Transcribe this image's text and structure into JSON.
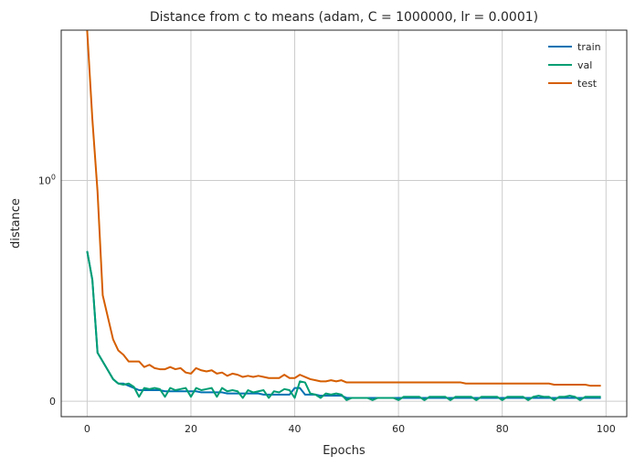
{
  "chart_data": {
    "type": "line",
    "title": "Distance from c to means (adam, C = 1000000, lr = 0.0001)",
    "xlabel": "Epochs",
    "ylabel": "distance",
    "yscale": "symlog",
    "xlim": [
      -5,
      104
    ],
    "grid": true,
    "legend_position": "top-right",
    "x_ticks": [
      0,
      20,
      40,
      60,
      80,
      100
    ],
    "x_tick_labels": [
      "0",
      "20",
      "40",
      "60",
      "80",
      "100"
    ],
    "y_ticks": [
      0,
      1
    ],
    "y_tick_labels": [
      "0",
      "10^0"
    ],
    "x": [
      0,
      1,
      2,
      3,
      4,
      5,
      6,
      7,
      8,
      9,
      10,
      11,
      12,
      13,
      14,
      15,
      16,
      17,
      18,
      19,
      20,
      21,
      22,
      23,
      24,
      25,
      26,
      27,
      28,
      29,
      30,
      31,
      32,
      33,
      34,
      35,
      36,
      37,
      38,
      39,
      40,
      41,
      42,
      43,
      44,
      45,
      46,
      47,
      48,
      49,
      50,
      51,
      52,
      53,
      54,
      55,
      56,
      57,
      58,
      59,
      60,
      61,
      62,
      63,
      64,
      65,
      66,
      67,
      68,
      69,
      70,
      71,
      72,
      73,
      74,
      75,
      76,
      77,
      78,
      79,
      80,
      81,
      82,
      83,
      84,
      85,
      86,
      87,
      88,
      89,
      90,
      91,
      92,
      93,
      94,
      95,
      96,
      97,
      98,
      99
    ],
    "series": [
      {
        "name": "train",
        "color": "#0072b2",
        "values": [
          0.68,
          0.55,
          0.22,
          0.18,
          0.14,
          0.1,
          0.08,
          0.08,
          0.07,
          0.06,
          0.05,
          0.05,
          0.05,
          0.05,
          0.05,
          0.045,
          0.045,
          0.045,
          0.045,
          0.045,
          0.045,
          0.045,
          0.04,
          0.04,
          0.04,
          0.04,
          0.04,
          0.035,
          0.035,
          0.035,
          0.035,
          0.035,
          0.035,
          0.035,
          0.03,
          0.03,
          0.03,
          0.03,
          0.03,
          0.03,
          0.06,
          0.06,
          0.03,
          0.03,
          0.03,
          0.025,
          0.025,
          0.025,
          0.025,
          0.025,
          0.015,
          0.015,
          0.015,
          0.015,
          0.015,
          0.015,
          0.015,
          0.015,
          0.015,
          0.015,
          0.015,
          0.015,
          0.015,
          0.015,
          0.015,
          0.015,
          0.015,
          0.015,
          0.015,
          0.015,
          0.015,
          0.015,
          0.015,
          0.015,
          0.015,
          0.015,
          0.015,
          0.015,
          0.015,
          0.015,
          0.015,
          0.015,
          0.015,
          0.015,
          0.015,
          0.015,
          0.015,
          0.015,
          0.015,
          0.015,
          0.015,
          0.015,
          0.015,
          0.015,
          0.015,
          0.015,
          0.015,
          0.015,
          0.015,
          0.015
        ]
      },
      {
        "name": "val",
        "color": "#009e73",
        "values": [
          0.68,
          0.55,
          0.22,
          0.18,
          0.14,
          0.1,
          0.08,
          0.075,
          0.08,
          0.065,
          0.02,
          0.06,
          0.055,
          0.06,
          0.055,
          0.02,
          0.06,
          0.05,
          0.055,
          0.06,
          0.02,
          0.06,
          0.05,
          0.055,
          0.06,
          0.02,
          0.06,
          0.045,
          0.05,
          0.045,
          0.015,
          0.05,
          0.04,
          0.045,
          0.05,
          0.015,
          0.045,
          0.04,
          0.055,
          0.05,
          0.015,
          0.09,
          0.085,
          0.035,
          0.03,
          0.015,
          0.035,
          0.03,
          0.035,
          0.03,
          0.005,
          0.015,
          0.015,
          0.015,
          0.015,
          0.005,
          0.015,
          0.015,
          0.015,
          0.015,
          0.005,
          0.02,
          0.02,
          0.02,
          0.02,
          0.005,
          0.02,
          0.02,
          0.02,
          0.02,
          0.005,
          0.02,
          0.02,
          0.02,
          0.02,
          0.005,
          0.02,
          0.02,
          0.02,
          0.02,
          0.005,
          0.02,
          0.02,
          0.02,
          0.02,
          0.005,
          0.02,
          0.025,
          0.02,
          0.02,
          0.005,
          0.02,
          0.02,
          0.025,
          0.02,
          0.005,
          0.02,
          0.02,
          0.02,
          0.02
        ]
      },
      {
        "name": "test",
        "color": "#d55e00",
        "values": [
          4.8,
          1.9,
          0.95,
          0.48,
          0.38,
          0.28,
          0.23,
          0.21,
          0.18,
          0.18,
          0.18,
          0.155,
          0.165,
          0.15,
          0.145,
          0.145,
          0.155,
          0.145,
          0.15,
          0.13,
          0.125,
          0.15,
          0.14,
          0.135,
          0.14,
          0.125,
          0.13,
          0.115,
          0.125,
          0.12,
          0.11,
          0.115,
          0.11,
          0.115,
          0.11,
          0.105,
          0.105,
          0.105,
          0.12,
          0.105,
          0.105,
          0.12,
          0.11,
          0.1,
          0.095,
          0.09,
          0.09,
          0.095,
          0.09,
          0.095,
          0.085,
          0.085,
          0.085,
          0.085,
          0.085,
          0.085,
          0.085,
          0.085,
          0.085,
          0.085,
          0.085,
          0.085,
          0.085,
          0.085,
          0.085,
          0.085,
          0.085,
          0.085,
          0.085,
          0.085,
          0.085,
          0.085,
          0.085,
          0.08,
          0.08,
          0.08,
          0.08,
          0.08,
          0.08,
          0.08,
          0.08,
          0.08,
          0.08,
          0.08,
          0.08,
          0.08,
          0.08,
          0.08,
          0.08,
          0.08,
          0.075,
          0.075,
          0.075,
          0.075,
          0.075,
          0.075,
          0.075,
          0.07,
          0.07,
          0.07
        ]
      }
    ]
  }
}
